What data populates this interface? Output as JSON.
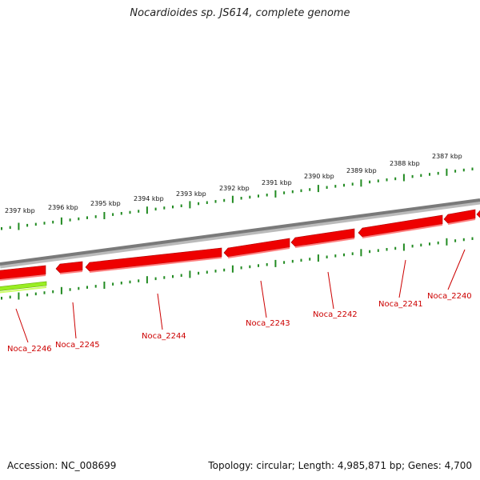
{
  "title": "Nocardioides sp. JS614, complete genome",
  "footer": {
    "accession": "Accession: NC_008699",
    "summary": "Topology: circular; Length: 4,985,871 bp; Genes: 4,700"
  },
  "colors": {
    "gene_forward": "#ee0000",
    "gene_highlight": "#99ee22",
    "backbone": "#808080",
    "ticks": "#228b22",
    "label_text": "#cc0000",
    "scale_text": "#111111"
  },
  "scale_labels": [
    "2397 kbp",
    "2396 kbp",
    "2395 kbp",
    "2394 kbp",
    "2393 kbp",
    "2392 kbp",
    "2391 kbp",
    "2390 kbp",
    "2389 kbp",
    "2388 kbp",
    "2387 kbp"
  ],
  "gene_labels": [
    "Noca_2246",
    "Noca_2245",
    "Noca_2244",
    "Noca_2243",
    "Noca_2242",
    "Noca_2241",
    "Noca_2240"
  ]
}
